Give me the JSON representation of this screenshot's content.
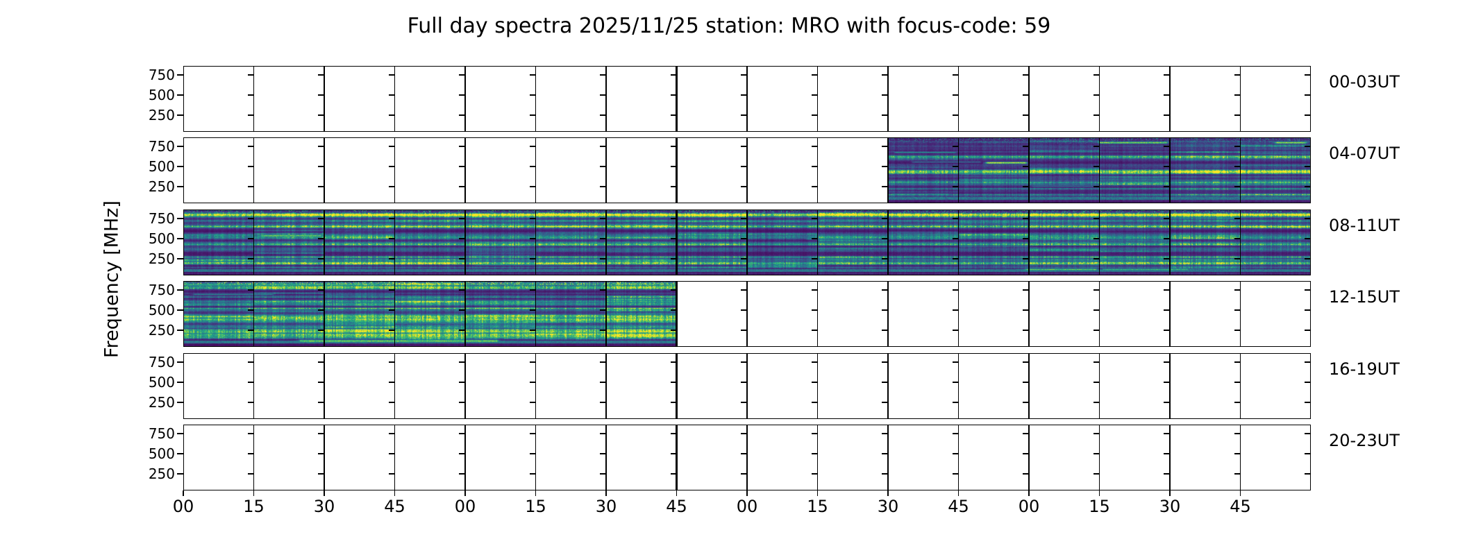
{
  "title": "Full day spectra 2025/11/25 station: MRO with focus-code: 59",
  "chart_data": {
    "type": "heatmap",
    "subtype": "spectrogram-grid",
    "title": "Full day spectra 2025/11/25 station: MRO with focus-code: 59",
    "ylabel": "Frequency [MHz]",
    "y_tick_labels": [
      "750",
      "500",
      "250"
    ],
    "y_ticks_mhz": [
      750,
      500,
      250
    ],
    "y_range_mhz": [
      40,
      862
    ],
    "x_tick_labels": [
      "00",
      "15",
      "30",
      "45",
      "00",
      "15",
      "30",
      "45",
      "00",
      "15",
      "30",
      "45",
      "00",
      "15",
      "30",
      "45"
    ],
    "x_axis_unit": "minutes",
    "panels_per_row": 16,
    "panel_minutes": 15,
    "grid": false,
    "legend": "none",
    "colormap": "viridis",
    "colormap_stops": [
      "#440154",
      "#482878",
      "#3e4a89",
      "#31688e",
      "#26828e",
      "#1f9e89",
      "#35b779",
      "#6dcd59",
      "#b4de2c",
      "#fde725"
    ],
    "rows": [
      {
        "label": "00-03UT",
        "coverage_panels": null,
        "texture_density": 0
      },
      {
        "label": "04-07UT",
        "coverage_panels": [
          10,
          16
        ],
        "texture_density": 1.0
      },
      {
        "label": "08-11UT",
        "coverage_panels": [
          0,
          16
        ],
        "texture_density": 1.15
      },
      {
        "label": "12-15UT",
        "coverage_panels": [
          0,
          7
        ],
        "texture_density": 1.45
      },
      {
        "label": "16-19UT",
        "coverage_panels": null,
        "texture_density": 0
      },
      {
        "label": "20-23UT",
        "coverage_panels": null,
        "texture_density": 0
      }
    ],
    "bright_features": [
      {
        "row": 1,
        "freq_mhz": 680,
        "panels": [
          10.05,
          11.0
        ],
        "intensity": 0.55
      },
      {
        "row": 1,
        "freq_mhz": 560,
        "panels": [
          10.3,
          11.35
        ],
        "intensity": 0.4
      },
      {
        "row": 1,
        "freq_mhz": 550,
        "panels": [
          11.35,
          12.0
        ],
        "intensity": 1.0,
        "width": 3
      },
      {
        "row": 1,
        "freq_mhz": 800,
        "panels": [
          12.95,
          14.0
        ],
        "intensity": 0.9,
        "width": 3
      },
      {
        "row": 1,
        "freq_mhz": 800,
        "panels": [
          15.45,
          15.97
        ],
        "intensity": 0.95,
        "width": 3
      },
      {
        "row": 1,
        "freq_mhz": 160,
        "panels": [
          10.0,
          10.9
        ],
        "intensity": 0.5
      },
      {
        "row": 1,
        "freq_mhz": 260,
        "panels": [
          12.0,
          13.05
        ],
        "intensity": 0.4
      },
      {
        "row": 2,
        "freq_mhz": 645,
        "panels": [
          0.0,
          1.3
        ],
        "intensity": 0.45
      },
      {
        "row": 2,
        "freq_mhz": 540,
        "panels": [
          1.05,
          2.0
        ],
        "intensity": 0.85,
        "width": 3
      },
      {
        "row": 2,
        "freq_mhz": 800,
        "panels": [
          3.5,
          3.95
        ],
        "intensity": 0.85
      },
      {
        "row": 2,
        "freq_mhz": 180,
        "panels": [
          4.1,
          5.6
        ],
        "intensity": 0.5
      },
      {
        "row": 2,
        "freq_mhz": 500,
        "panels": [
          8.8,
          9.6
        ],
        "intensity": 0.5
      },
      {
        "row": 2,
        "freq_mhz": 800,
        "panels": [
          9.1,
          9.6
        ],
        "intensity": 0.85
      },
      {
        "row": 2,
        "freq_mhz": 190,
        "panels": [
          10.3,
          11.0
        ],
        "intensity": 0.6
      },
      {
        "row": 2,
        "freq_mhz": 800,
        "panels": [
          11.9,
          12.6
        ],
        "intensity": 0.8
      },
      {
        "row": 2,
        "freq_mhz": 120,
        "panels": [
          11.9,
          13.0
        ],
        "intensity": 0.8,
        "width": 3
      },
      {
        "row": 2,
        "freq_mhz": 120,
        "panels": [
          13.0,
          14.3
        ],
        "intensity": 0.7,
        "width": 3
      },
      {
        "row": 2,
        "freq_mhz": 780,
        "panels": [
          13.9,
          15.1
        ],
        "intensity": 0.5,
        "width": 5
      },
      {
        "row": 3,
        "freq_mhz": 700,
        "panels": [
          0.1,
          1.3
        ],
        "intensity": 0.5
      },
      {
        "row": 3,
        "freq_mhz": 520,
        "panels": [
          0.0,
          2.2
        ],
        "intensity": 0.5
      },
      {
        "row": 3,
        "freq_mhz": 340,
        "panels": [
          2.0,
          4.7
        ],
        "intensity": 0.45
      },
      {
        "row": 3,
        "freq_mhz": 170,
        "panels": [
          2.6,
          4.6
        ],
        "intensity": 0.75,
        "width": 3
      },
      {
        "row": 3,
        "freq_mhz": 170,
        "panels": [
          0.0,
          2.6
        ],
        "intensity": 0.45
      },
      {
        "row": 3,
        "freq_mhz": 120,
        "panels": [
          1.6,
          4.5
        ],
        "intensity": 0.85,
        "width": 4
      },
      {
        "row": 3,
        "freq_mhz": 820,
        "panels": [
          0.0,
          2.8
        ],
        "intensity": 0.6,
        "width": 5
      }
    ]
  },
  "colors": {
    "background": "#ffffff",
    "axis": "#000000",
    "text": "#000000"
  },
  "seed": 7
}
